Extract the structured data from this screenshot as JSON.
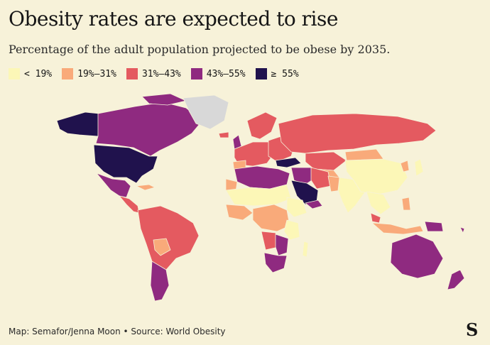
{
  "title": "Obesity rates are expected to rise",
  "subtitle": "Percentage of the adult population projected to be obese by 2035.",
  "legend": [
    {
      "label": "< 19%",
      "color": "#fcf7b7"
    },
    {
      "label": "19%–31%",
      "color": "#f9aa7a"
    },
    {
      "label": "31%–43%",
      "color": "#e45a60"
    },
    {
      "label": "43%–55%",
      "color": "#8f2a80"
    },
    {
      "label": "≥ 55%",
      "color": "#20124d"
    }
  ],
  "no_data_color": "#d8d8d8",
  "footer": "Map: Semafor/Jenna Moon • Source: World Obesity",
  "logo": "S"
}
